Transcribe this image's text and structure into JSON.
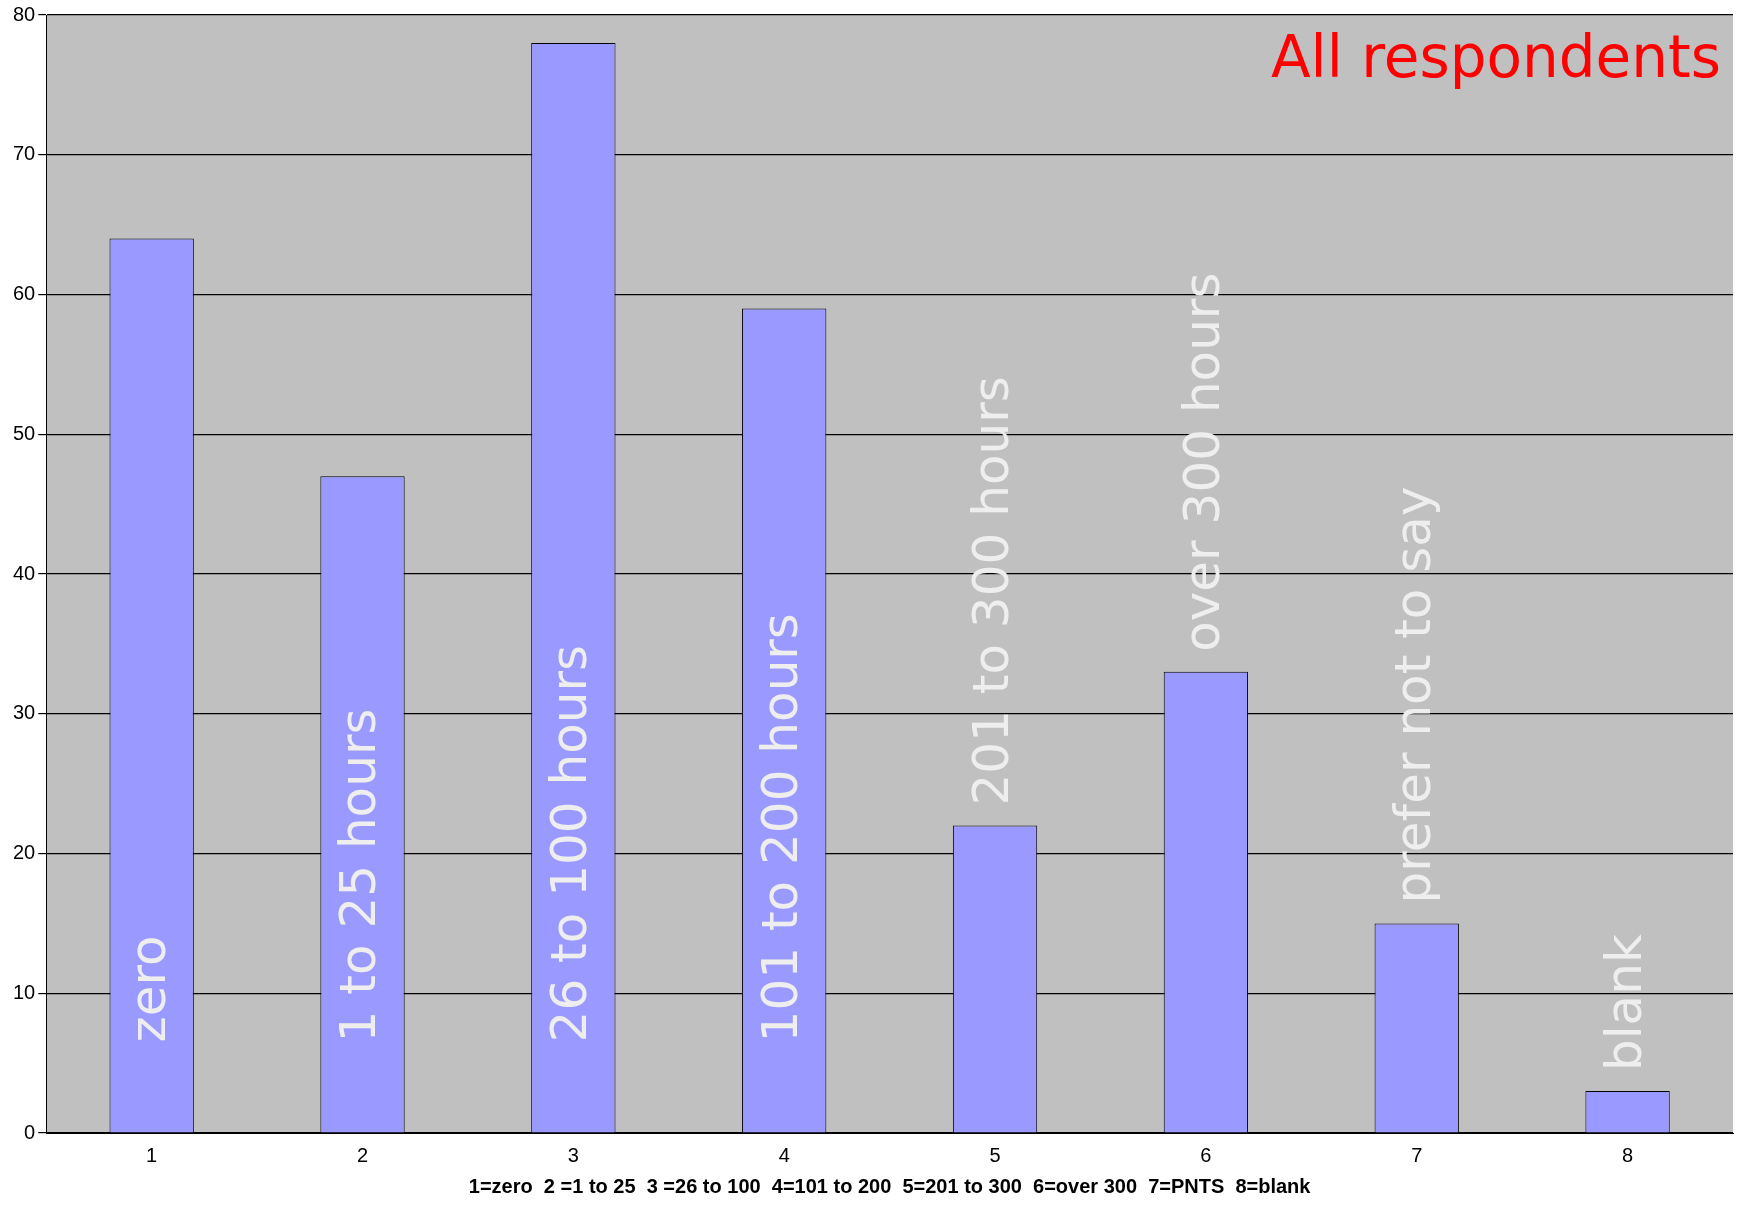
{
  "chart_data": {
    "type": "bar",
    "title": "All respondents",
    "categories": [
      "1",
      "2",
      "3",
      "4",
      "5",
      "6",
      "7",
      "8"
    ],
    "values": [
      64,
      47,
      78,
      59,
      22,
      33,
      15,
      3
    ],
    "color": "#9999ff",
    "xlabel": "1=zero  2 =1 to 25  3 =26 to 100  4=101 to 200  5=201 to 300  6=over 300  7=PNTS  8=blank",
    "ylim": [
      0,
      80
    ],
    "yticks": [
      0,
      10,
      20,
      30,
      40,
      50,
      60,
      70,
      80
    ],
    "grid": "y",
    "annotations": [
      "zero",
      "1 to 25 hours",
      "26 to 100 hours",
      "101 to 200 hours",
      "201 to 300 hours",
      "over 300 hours",
      "prefer not to say",
      "blank"
    ]
  }
}
